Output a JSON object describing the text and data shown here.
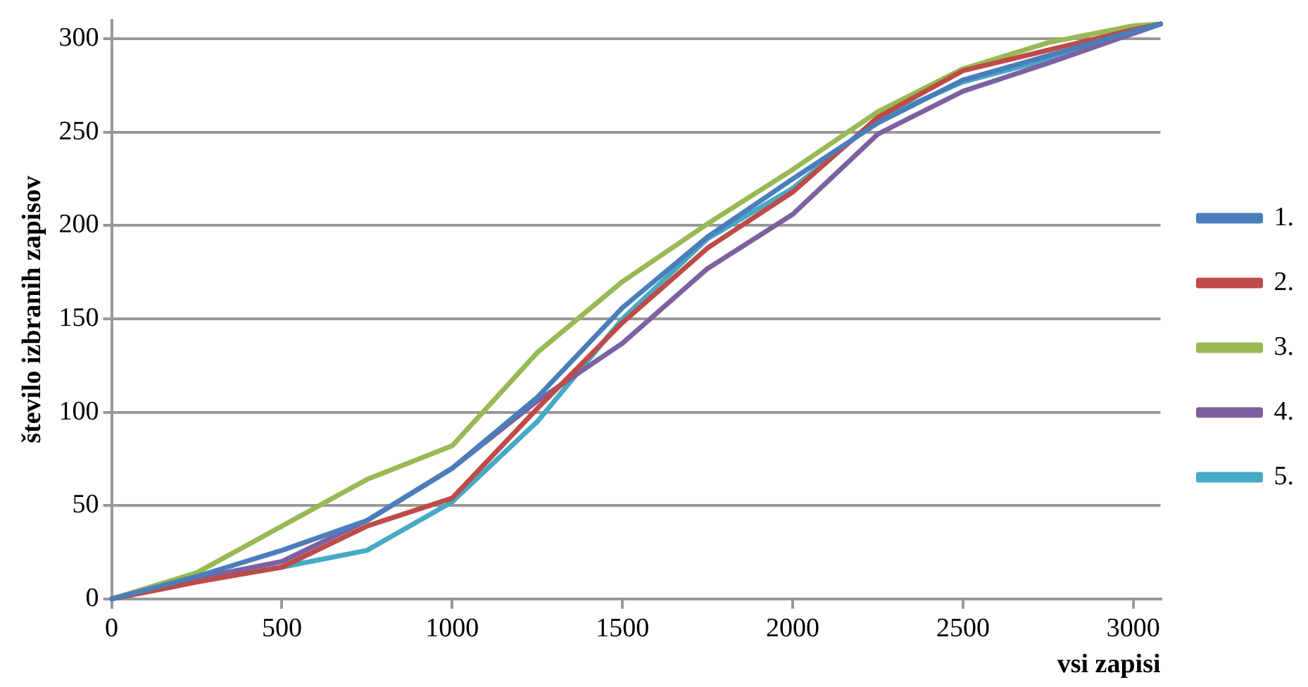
{
  "chart_data": {
    "type": "line",
    "xlabel": "vsi zapisi",
    "ylabel": "število izbranih zapisov",
    "x": [
      0,
      250,
      500,
      750,
      1000,
      1250,
      1500,
      1750,
      2000,
      2250,
      2500,
      2750,
      3000,
      3080
    ],
    "series": [
      {
        "name": "1.",
        "color": "#4a7ebb",
        "values": [
          0,
          12,
          26,
          42,
          70,
          108,
          156,
          194,
          225,
          255,
          278,
          291,
          304,
          308
        ]
      },
      {
        "name": "2.",
        "color": "#be4b48",
        "values": [
          0,
          9,
          17,
          39,
          54,
          102,
          148,
          188,
          218,
          258,
          283,
          294,
          305,
          308
        ]
      },
      {
        "name": "3.",
        "color": "#98b954",
        "values": [
          0,
          14,
          39,
          64,
          82,
          132,
          170,
          201,
          230,
          261,
          284,
          298,
          307,
          308
        ]
      },
      {
        "name": "4.",
        "color": "#7d60a0",
        "values": [
          0,
          11,
          20,
          42,
          70,
          106,
          137,
          177,
          206,
          249,
          272,
          287,
          303,
          308
        ]
      },
      {
        "name": "5.",
        "color": "#46aac5",
        "values": [
          0,
          10,
          17,
          26,
          52,
          95,
          150,
          193,
          220,
          257,
          277,
          289,
          303,
          308
        ]
      }
    ],
    "xlim": [
      0,
      3080
    ],
    "xticks": [
      0,
      500,
      1000,
      1500,
      2000,
      2500,
      3000
    ],
    "ylim": [
      0,
      310
    ],
    "yticks": [
      0,
      50,
      100,
      150,
      200,
      250,
      300
    ],
    "grid": "y",
    "legend": "right",
    "marker": "none",
    "line_style": "solid"
  }
}
